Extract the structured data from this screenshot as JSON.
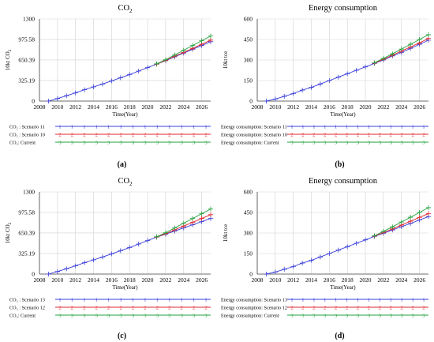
{
  "chart_data": [
    {
      "id": "a",
      "panel_label": "(a)",
      "type": "line",
      "title": "CO",
      "title_sub": "2",
      "xlabel": "Time(Year)",
      "ylabel": "10kt  CO",
      "ylabel_sub": "2",
      "xlim": [
        2008,
        2027
      ],
      "ylim": [
        0,
        1300
      ],
      "x_ticks": [
        2008,
        2010,
        2012,
        2014,
        2016,
        2018,
        2020,
        2022,
        2024,
        2026
      ],
      "y_ticks": [
        0,
        325.19,
        650.39,
        975.58,
        1300
      ],
      "y_tick_labels": [
        "0",
        "325.19",
        "650.39",
        "975.58",
        "1300"
      ],
      "grid": true,
      "series": [
        {
          "name": "CO₂ : Scenario 11",
          "marker": "1",
          "color": "#3a3fd9",
          "x": [
            2009,
            2010,
            2011,
            2012,
            2013,
            2014,
            2015,
            2016,
            2017,
            2018,
            2019,
            2020,
            2021,
            2022,
            2023,
            2024,
            2025,
            2026,
            2027
          ],
          "y": [
            0,
            40,
            85,
            130,
            180,
            225,
            270,
            320,
            370,
            420,
            475,
            530,
            585,
            640,
            700,
            760,
            820,
            880,
            940
          ]
        },
        {
          "name": "CO₂ : Scenario 10",
          "marker": "2",
          "color": "#e0262b",
          "x": [
            2021,
            2022,
            2023,
            2024,
            2025,
            2026,
            2027
          ],
          "y": [
            585,
            645,
            710,
            770,
            835,
            900,
            965
          ]
        },
        {
          "name": "CO₂: Current",
          "marker": "3",
          "color": "#22a03c",
          "x": [
            2021,
            2022,
            2023,
            2024,
            2025,
            2026,
            2027
          ],
          "y": [
            590,
            655,
            730,
            805,
            880,
            955,
            1030
          ]
        }
      ]
    },
    {
      "id": "b",
      "panel_label": "(b)",
      "type": "line",
      "title": "Energy consumption",
      "xlabel": "Time(Year)",
      "ylabel": "10kt  tce",
      "xlim": [
        2008,
        2027
      ],
      "ylim": [
        0,
        600
      ],
      "x_ticks": [
        2008,
        2010,
        2012,
        2014,
        2016,
        2018,
        2020,
        2022,
        2024,
        2026
      ],
      "y_ticks": [
        0,
        150,
        300,
        450,
        600
      ],
      "y_tick_labels": [
        "0",
        "150",
        "300",
        "450",
        "600"
      ],
      "grid": true,
      "series": [
        {
          "name": "Energy consumption: Scenario 11",
          "marker": "1",
          "color": "#3a3fd9",
          "x": [
            2009,
            2010,
            2011,
            2012,
            2013,
            2014,
            2015,
            2016,
            2017,
            2018,
            2019,
            2020,
            2021,
            2022,
            2023,
            2024,
            2025,
            2026,
            2027
          ],
          "y": [
            0,
            15,
            35,
            55,
            80,
            100,
            125,
            150,
            175,
            200,
            225,
            250,
            275,
            300,
            330,
            355,
            385,
            415,
            445
          ]
        },
        {
          "name": "Energy consumption: Scenario 10",
          "marker": "2",
          "color": "#e0262b",
          "x": [
            2021,
            2022,
            2023,
            2024,
            2025,
            2026,
            2027
          ],
          "y": [
            277,
            305,
            335,
            365,
            395,
            425,
            458
          ]
        },
        {
          "name": "Energy consumption: Current",
          "marker": "3",
          "color": "#22a03c",
          "x": [
            2021,
            2022,
            2023,
            2024,
            2025,
            2026,
            2027
          ],
          "y": [
            280,
            312,
            345,
            380,
            415,
            450,
            485
          ]
        }
      ]
    },
    {
      "id": "c",
      "panel_label": "(c)",
      "type": "line",
      "title": "CO",
      "title_sub": "2",
      "xlabel": "Time(Year)",
      "ylabel": "10kt  CO",
      "ylabel_sub": "2",
      "xlim": [
        2008,
        2027
      ],
      "ylim": [
        0,
        1300
      ],
      "x_ticks": [
        2008,
        2010,
        2012,
        2014,
        2016,
        2018,
        2020,
        2022,
        2024,
        2026
      ],
      "y_ticks": [
        0,
        325.19,
        650.39,
        975.58,
        1300
      ],
      "y_tick_labels": [
        "0",
        "325.19",
        "650.39",
        "975.58",
        "1300"
      ],
      "grid": true,
      "series": [
        {
          "name": "CO₂ : Scenario 13",
          "marker": "1",
          "color": "#3a3fd9",
          "x": [
            2009,
            2010,
            2011,
            2012,
            2013,
            2014,
            2015,
            2016,
            2017,
            2018,
            2019,
            2020,
            2021,
            2022,
            2023,
            2024,
            2025,
            2026,
            2027
          ],
          "y": [
            0,
            40,
            85,
            130,
            180,
            225,
            270,
            320,
            370,
            420,
            475,
            530,
            585,
            630,
            680,
            730,
            780,
            830,
            880
          ]
        },
        {
          "name": "CO₂ : Scenario 12",
          "marker": "2",
          "color": "#e0262b",
          "x": [
            2021,
            2022,
            2023,
            2024,
            2025,
            2026,
            2027
          ],
          "y": [
            585,
            640,
            700,
            760,
            820,
            880,
            940
          ]
        },
        {
          "name": "CO₂: Current",
          "marker": "3",
          "color": "#22a03c",
          "x": [
            2021,
            2022,
            2023,
            2024,
            2025,
            2026,
            2027
          ],
          "y": [
            590,
            655,
            730,
            805,
            880,
            955,
            1030
          ]
        }
      ]
    },
    {
      "id": "d",
      "panel_label": "(d)",
      "type": "line",
      "title": "Energy consumption",
      "xlabel": "Time(Year)",
      "ylabel": "10kt  tce",
      "xlim": [
        2008,
        2027
      ],
      "ylim": [
        0,
        600
      ],
      "x_ticks": [
        2008,
        2010,
        2012,
        2014,
        2016,
        2018,
        2020,
        2022,
        2024,
        2026
      ],
      "y_ticks": [
        0,
        150,
        300,
        450,
        600
      ],
      "y_tick_labels": [
        "0",
        "150",
        "300",
        "450",
        "600"
      ],
      "grid": true,
      "series": [
        {
          "name": "Energy consumption: Scenario 13",
          "marker": "1",
          "color": "#3a3fd9",
          "x": [
            2009,
            2010,
            2011,
            2012,
            2013,
            2014,
            2015,
            2016,
            2017,
            2018,
            2019,
            2020,
            2021,
            2022,
            2023,
            2024,
            2025,
            2026,
            2027
          ],
          "y": [
            0,
            15,
            35,
            55,
            80,
            100,
            125,
            150,
            175,
            200,
            225,
            250,
            275,
            298,
            322,
            346,
            370,
            395,
            420
          ]
        },
        {
          "name": "Energy consumption: Scenario 12",
          "marker": "2",
          "color": "#e0262b",
          "x": [
            2021,
            2022,
            2023,
            2024,
            2025,
            2026,
            2027
          ],
          "y": [
            277,
            303,
            330,
            358,
            386,
            414,
            442
          ]
        },
        {
          "name": "Energy consumption: Current",
          "marker": "3",
          "color": "#22a03c",
          "x": [
            2021,
            2022,
            2023,
            2024,
            2025,
            2026,
            2027
          ],
          "y": [
            280,
            312,
            345,
            380,
            415,
            450,
            485
          ]
        }
      ]
    }
  ]
}
